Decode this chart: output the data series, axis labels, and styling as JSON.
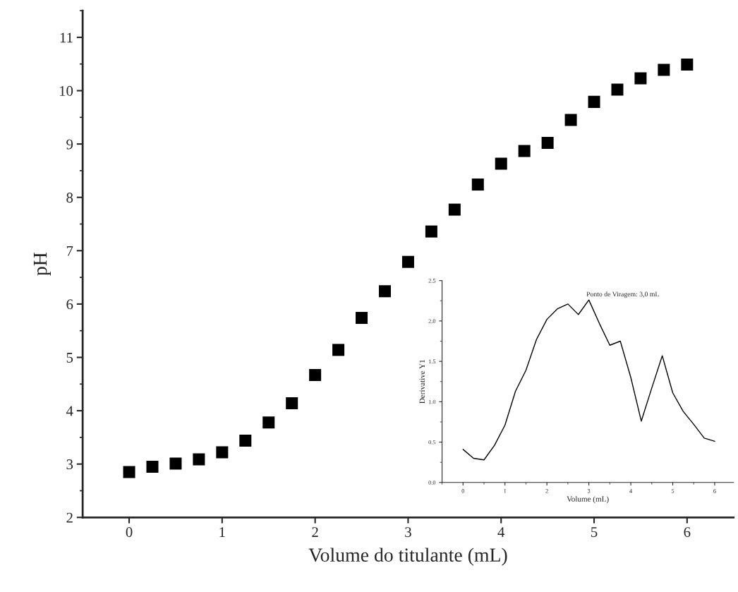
{
  "chart_data": [
    {
      "type": "scatter",
      "xlabel": "Volume do titulante (mL)",
      "ylabel": "pH",
      "marker": "square",
      "grid": false,
      "legend": false,
      "x": [
        0,
        0.25,
        0.5,
        0.75,
        1,
        1.25,
        1.5,
        1.75,
        2,
        2.25,
        2.5,
        2.75,
        3,
        3.25,
        3.5,
        3.75,
        4,
        4.25,
        4.5,
        4.75,
        5,
        5.25,
        5.5,
        5.75,
        6
      ],
      "series": [
        {
          "color": "#000000",
          "values": [
            2.85,
            2.95,
            3.01,
            3.09,
            3.22,
            3.44,
            3.78,
            4.14,
            4.67,
            5.14,
            5.74,
            6.24,
            6.79,
            7.36,
            7.77,
            8.24,
            8.63,
            8.87,
            9.02,
            9.45,
            9.79,
            10.02,
            10.23,
            10.39,
            10.49
          ]
        }
      ],
      "xlim": [
        -0.5,
        6.5
      ],
      "ylim": [
        2,
        11.5
      ],
      "xticks": [
        0,
        1,
        2,
        3,
        4,
        5,
        6
      ],
      "yticks": [
        2,
        3,
        4,
        5,
        6,
        7,
        8,
        9,
        10,
        11
      ]
    },
    {
      "type": "line",
      "xlabel": "Volume (mL)",
      "ylabel": "Derivative Y1",
      "marker": "none",
      "line_style": "solid",
      "grid": false,
      "legend": false,
      "annotations": [
        "Ponto de Viragem: 3,0 mL"
      ],
      "x": [
        0,
        0.25,
        0.5,
        0.75,
        1,
        1.25,
        1.5,
        1.75,
        2,
        2.25,
        2.5,
        2.75,
        3,
        3.25,
        3.5,
        3.75,
        4,
        4.25,
        4.5,
        4.75,
        5,
        5.25,
        5.5,
        5.75,
        6
      ],
      "series": [
        {
          "color": "#000000",
          "values": [
            0.41,
            0.3,
            0.28,
            0.46,
            0.71,
            1.13,
            1.39,
            1.77,
            2.02,
            2.15,
            2.21,
            2.08,
            2.26,
            1.97,
            1.7,
            1.75,
            1.3,
            0.76,
            1.17,
            1.57,
            1.11,
            0.88,
            0.72,
            0.55,
            0.51
          ]
        }
      ],
      "xlim": [
        -0.5,
        6.45
      ],
      "ylim": [
        0,
        2.5
      ],
      "xticks": [
        0,
        1,
        2,
        3,
        4,
        5,
        6
      ],
      "yticks": [
        {
          "value": 0,
          "label": "0.0"
        },
        {
          "value": 0.5,
          "label": "0.5"
        },
        {
          "value": 1,
          "label": "1.0"
        },
        {
          "value": 1.5,
          "label": "1.5"
        },
        {
          "value": 2,
          "label": "2.0"
        },
        {
          "value": 2.5,
          "label": "2.5"
        }
      ]
    }
  ]
}
